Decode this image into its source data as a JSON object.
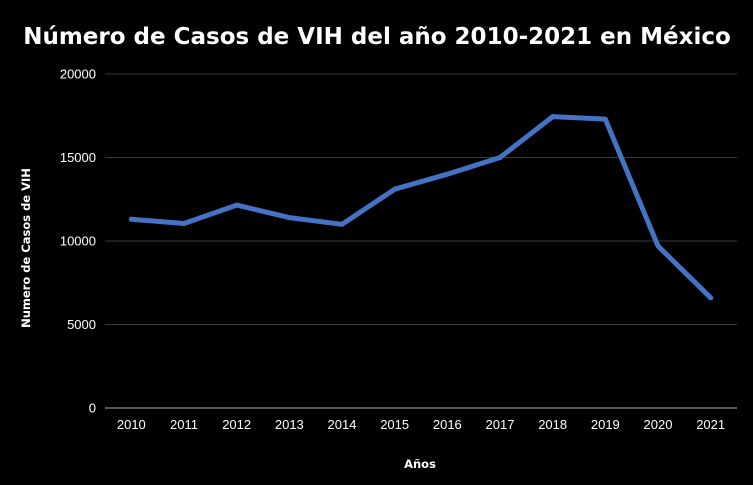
{
  "chart_data": {
    "type": "line",
    "title": "Número de Casos de VIH del año 2010-2021 en México",
    "xlabel": "Años",
    "ylabel": "Numero de Casos de VIH",
    "categories": [
      "2010",
      "2011",
      "2012",
      "2013",
      "2014",
      "2015",
      "2016",
      "2017",
      "2018",
      "2019",
      "2020",
      "2021"
    ],
    "series": [
      {
        "values": [
          11300,
          11050,
          12150,
          11400,
          11000,
          13100,
          14000,
          15000,
          17450,
          17300,
          9700,
          6600
        ]
      }
    ],
    "ylim": [
      0,
      20000
    ],
    "yticks": [
      "0",
      "5000",
      "10000",
      "15000",
      "20000"
    ],
    "grid": true,
    "legend": "none",
    "colors": {
      "line": "#4472C4",
      "background": "#000000",
      "grid": "#3a3a3a"
    }
  }
}
